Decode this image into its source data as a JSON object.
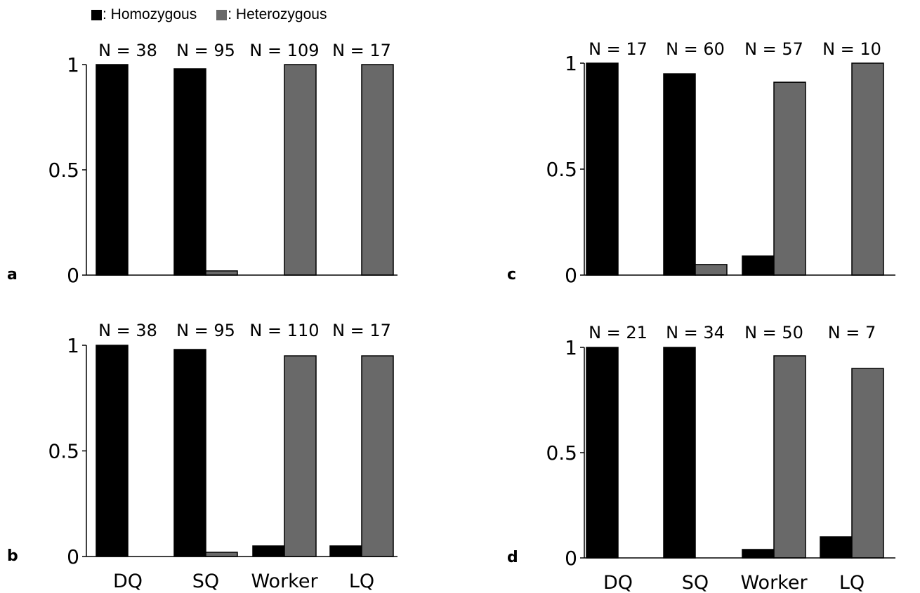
{
  "legend": {
    "homozygous_label": ": Homozygous",
    "heterozygous_label": ": Heterozygous",
    "homozygous_color": "#000000",
    "heterozygous_color": "#696969"
  },
  "chart_data": [
    {
      "panel": "a",
      "type": "bar",
      "categories": [
        "DQ",
        "SQ",
        "Worker",
        "LQ"
      ],
      "series": [
        {
          "name": "Homozygous",
          "values": [
            1.0,
            0.98,
            0.0,
            0.0
          ]
        },
        {
          "name": "Heterozygous",
          "values": [
            0.0,
            0.02,
            1.0,
            1.0
          ]
        }
      ],
      "n_labels": [
        "N = 38",
        "N = 95",
        "N = 109",
        "N = 17"
      ],
      "ylim": [
        0,
        1
      ],
      "yticks": [
        "0",
        "0.5",
        "1"
      ],
      "show_xticklabels": false
    },
    {
      "panel": "b",
      "type": "bar",
      "categories": [
        "DQ",
        "SQ",
        "Worker",
        "LQ"
      ],
      "series": [
        {
          "name": "Homozygous",
          "values": [
            1.0,
            0.98,
            0.05,
            0.05
          ]
        },
        {
          "name": "Heterozygous",
          "values": [
            0.0,
            0.02,
            0.95,
            0.95
          ]
        }
      ],
      "n_labels": [
        "N = 38",
        "N = 95",
        "N = 110",
        "N = 17"
      ],
      "ylim": [
        0,
        1
      ],
      "yticks": [
        "0",
        "0.5",
        "1"
      ],
      "show_xticklabels": true
    },
    {
      "panel": "c",
      "type": "bar",
      "categories": [
        "DQ",
        "SQ",
        "Worker",
        "LQ"
      ],
      "series": [
        {
          "name": "Homozygous",
          "values": [
            1.0,
            0.95,
            0.09,
            0.0
          ]
        },
        {
          "name": "Heterozygous",
          "values": [
            0.0,
            0.05,
            0.91,
            1.0
          ]
        }
      ],
      "n_labels": [
        "N = 17",
        "N = 60",
        "N = 57",
        "N = 10"
      ],
      "ylim": [
        0,
        1
      ],
      "yticks": [
        "0",
        "0.5",
        "1"
      ],
      "show_xticklabels": false
    },
    {
      "panel": "d",
      "type": "bar",
      "categories": [
        "DQ",
        "SQ",
        "Worker",
        "LQ"
      ],
      "series": [
        {
          "name": "Homozygous",
          "values": [
            1.0,
            1.0,
            0.04,
            0.1
          ]
        },
        {
          "name": "Heterozygous",
          "values": [
            0.0,
            0.0,
            0.96,
            0.9
          ]
        }
      ],
      "n_labels": [
        "N = 21",
        "N = 34",
        "N = 50",
        "N = 7"
      ],
      "ylim": [
        0,
        1
      ],
      "yticks": [
        "0",
        "0.5",
        "1"
      ],
      "show_xticklabels": true
    }
  ]
}
